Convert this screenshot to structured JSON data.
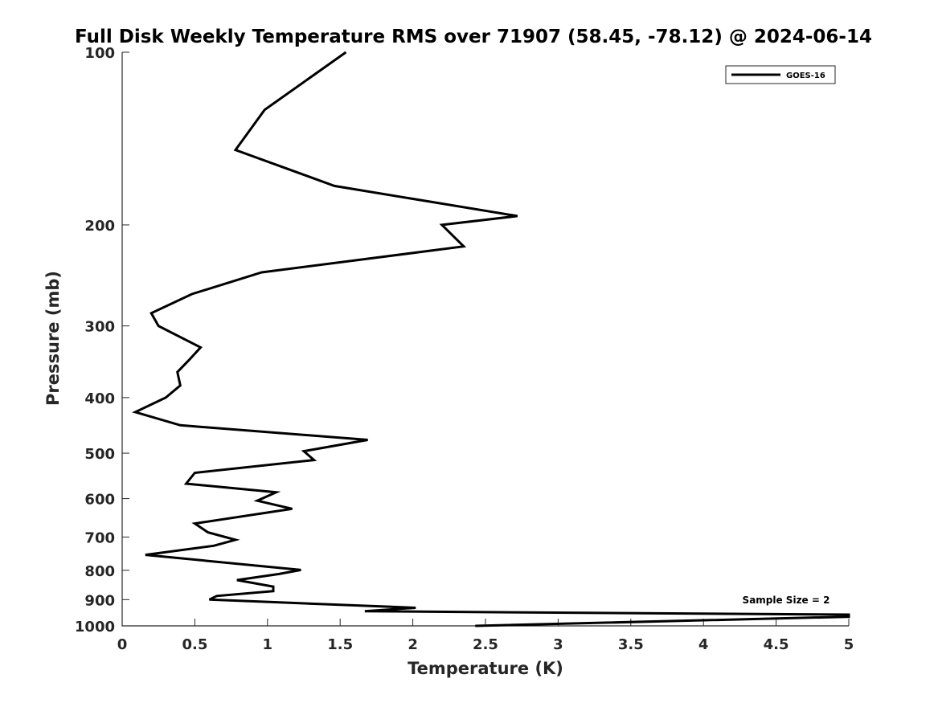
{
  "chart_data": {
    "type": "line",
    "title": "Full Disk Weekly Temperature RMS over 71907 (58.45, -78.12) @ 2024-06-14",
    "xlabel": "Temperature (K)",
    "ylabel": "Pressure (mb)",
    "xlim": [
      0,
      5
    ],
    "ylim": [
      100,
      1000
    ],
    "y_scale": "log",
    "y_reversed": true,
    "grid": false,
    "legend_position": "top-right",
    "x_ticks": [
      "0",
      "0.5",
      "1",
      "1.5",
      "2",
      "2.5",
      "3",
      "3.5",
      "4",
      "4.5",
      "5"
    ],
    "y_ticks": [
      "100",
      "200",
      "300",
      "400",
      "500",
      "600",
      "700",
      "800",
      "900",
      "1000"
    ],
    "annotation": "Sample Size = 2",
    "series": [
      {
        "name": "GOES-16",
        "color": "#000000",
        "points": [
          [
            1.54,
            100
          ],
          [
            0.98,
            126
          ],
          [
            0.78,
            148
          ],
          [
            1.46,
            171
          ],
          [
            2.72,
            193
          ],
          [
            2.2,
            200
          ],
          [
            2.35,
            218
          ],
          [
            0.96,
            242
          ],
          [
            0.48,
            264
          ],
          [
            0.2,
            285
          ],
          [
            0.25,
            300
          ],
          [
            0.54,
            327
          ],
          [
            0.46,
            344
          ],
          [
            0.38,
            361
          ],
          [
            0.4,
            381
          ],
          [
            0.3,
            400
          ],
          [
            0.09,
            424
          ],
          [
            0.4,
            447
          ],
          [
            1.69,
            474
          ],
          [
            1.25,
            496
          ],
          [
            1.32,
            514
          ],
          [
            0.5,
            541
          ],
          [
            0.44,
            565
          ],
          [
            1.06,
            585
          ],
          [
            0.93,
            605
          ],
          [
            1.17,
            625
          ],
          [
            0.5,
            663
          ],
          [
            0.59,
            687
          ],
          [
            0.78,
            708
          ],
          [
            0.63,
            725
          ],
          [
            0.16,
            752
          ],
          [
            1.23,
            799
          ],
          [
            1.08,
            812
          ],
          [
            0.79,
            832
          ],
          [
            1.04,
            854
          ],
          [
            1.04,
            870
          ],
          [
            0.65,
            887
          ],
          [
            0.6,
            900
          ],
          [
            2.02,
            930
          ],
          [
            1.67,
            943
          ],
          [
            5.0,
            956
          ],
          [
            5.0,
            964
          ],
          [
            2.43,
            1000
          ]
        ]
      }
    ]
  }
}
